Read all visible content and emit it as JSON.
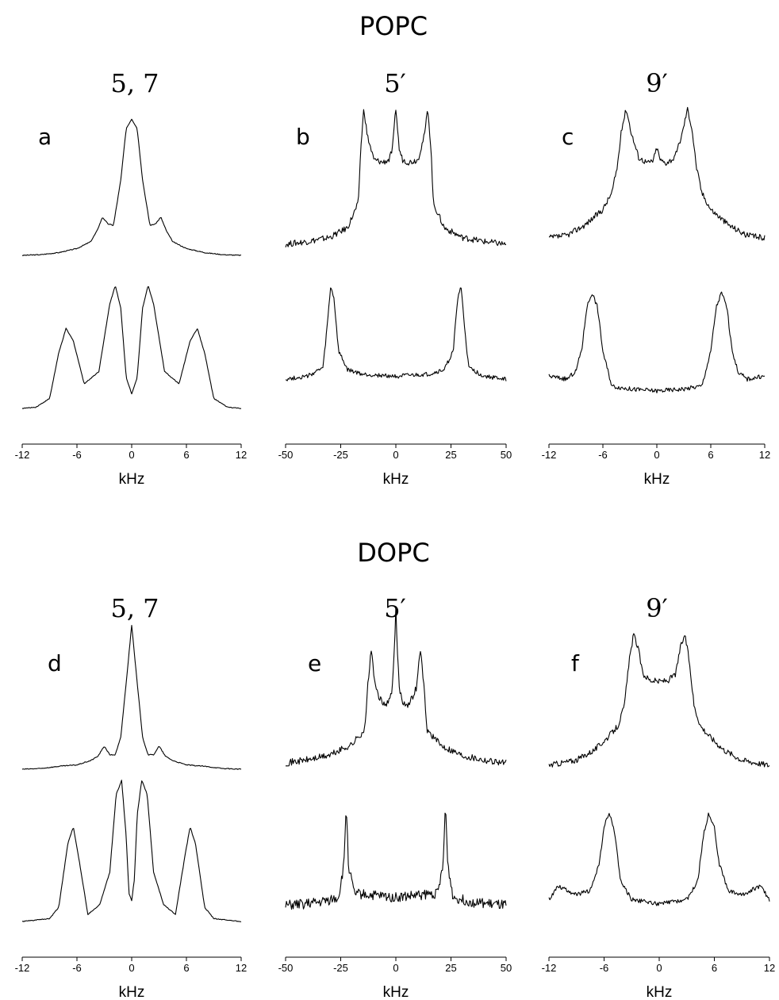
{
  "figure": {
    "groups": [
      {
        "title": "POPC",
        "columns": [
          "5, 7",
          "5′",
          "9′"
        ]
      },
      {
        "title": "DOPC",
        "columns": [
          "5, 7",
          "5′",
          "9′"
        ]
      }
    ]
  },
  "chart_data": [
    {
      "panel": "a",
      "type": "line",
      "group": "POPC",
      "column_label": "5, 7",
      "xlabel": "kHz",
      "xlim": [
        -12,
        12
      ],
      "xticks": [
        -12,
        -6,
        0,
        6,
        12
      ],
      "series": [
        {
          "role": "upper",
          "x": [
            -12,
            -10,
            -8,
            -6,
            -4.5,
            -3.8,
            -3.2,
            -2.6,
            -2,
            -1.2,
            -0.6,
            0,
            0.6,
            1.2,
            2,
            2.6,
            3.2,
            3.8,
            4.5,
            6,
            8,
            10,
            12
          ],
          "y": [
            0,
            0.005,
            0.02,
            0.05,
            0.1,
            0.18,
            0.28,
            0.23,
            0.22,
            0.55,
            0.93,
            1.0,
            0.93,
            0.55,
            0.22,
            0.23,
            0.28,
            0.18,
            0.1,
            0.05,
            0.02,
            0.005,
            0
          ]
        },
        {
          "role": "lower",
          "x": [
            -12,
            -10.5,
            -9,
            -8,
            -7.2,
            -6.4,
            -5.2,
            -3.6,
            -2.4,
            -1.8,
            -1.2,
            -0.6,
            0,
            0.6,
            1.2,
            1.8,
            2.4,
            3.6,
            5.2,
            6.4,
            7.2,
            8,
            9,
            10.5,
            12
          ],
          "y": [
            0,
            0.01,
            0.08,
            0.45,
            0.65,
            0.55,
            0.2,
            0.3,
            0.85,
            1.0,
            0.82,
            0.25,
            0.12,
            0.25,
            0.82,
            1.0,
            0.85,
            0.3,
            0.2,
            0.55,
            0.65,
            0.45,
            0.08,
            0.01,
            0
          ]
        }
      ]
    },
    {
      "panel": "b",
      "type": "line",
      "group": "POPC",
      "column_label": "5′",
      "xlabel": "kHz",
      "xlim": [
        -50,
        50
      ],
      "xticks": [
        -50,
        -25,
        0,
        25,
        50
      ],
      "series": [
        {
          "role": "upper",
          "x": [
            -50,
            -40,
            -30,
            -22,
            -17,
            -16,
            -14.5,
            -13,
            -10,
            -6,
            -3,
            -1.5,
            -0.5,
            0,
            0.5,
            1.5,
            3,
            6,
            10,
            13,
            14.5,
            16,
            17,
            22,
            30,
            40,
            50
          ],
          "y": [
            0,
            0.02,
            0.05,
            0.12,
            0.3,
            0.68,
            1.0,
            0.8,
            0.62,
            0.6,
            0.62,
            0.7,
            0.9,
            1.0,
            0.9,
            0.7,
            0.62,
            0.6,
            0.62,
            0.8,
            1.0,
            0.68,
            0.3,
            0.12,
            0.05,
            0.02,
            0
          ]
        },
        {
          "role": "lower",
          "x": [
            -50,
            -40,
            -33,
            -31,
            -29.5,
            -28,
            -26,
            -22,
            -15,
            0,
            15,
            22,
            26,
            28,
            29.5,
            31,
            33,
            40,
            50
          ],
          "y": [
            0,
            0.03,
            0.12,
            0.6,
            1.0,
            0.85,
            0.3,
            0.1,
            0.05,
            0.03,
            0.05,
            0.1,
            0.3,
            0.85,
            1.0,
            0.6,
            0.12,
            0.03,
            0
          ]
        }
      ]
    },
    {
      "panel": "c",
      "type": "line",
      "group": "POPC",
      "column_label": "9′",
      "xlabel": "kHz",
      "xlim": [
        -12,
        12
      ],
      "xticks": [
        -12,
        -6,
        0,
        6,
        12
      ],
      "series": [
        {
          "role": "upper",
          "x": [
            -12,
            -10,
            -8,
            -6,
            -5,
            -4.4,
            -3.9,
            -3.4,
            -2.8,
            -2,
            -1,
            -0.4,
            0,
            0.4,
            1,
            2,
            2.8,
            3.4,
            3.9,
            4.4,
            5,
            6,
            8,
            10,
            12
          ],
          "y": [
            0,
            0.02,
            0.1,
            0.22,
            0.35,
            0.55,
            0.85,
            1.0,
            0.8,
            0.62,
            0.58,
            0.6,
            0.7,
            0.6,
            0.58,
            0.62,
            0.8,
            1.0,
            0.85,
            0.55,
            0.35,
            0.22,
            0.1,
            0.02,
            0
          ]
        },
        {
          "role": "lower",
          "x": [
            -12,
            -10,
            -9,
            -8.3,
            -7.8,
            -7.2,
            -6.6,
            -6,
            -5,
            -3,
            0,
            3,
            5,
            6,
            6.6,
            7.2,
            7.8,
            8.3,
            9,
            10,
            12
          ],
          "y": [
            0.15,
            0.12,
            0.2,
            0.45,
            0.85,
            1.0,
            0.85,
            0.4,
            0.05,
            0.02,
            0,
            0.02,
            0.05,
            0.4,
            0.85,
            1.0,
            0.85,
            0.45,
            0.2,
            0.12,
            0.15
          ]
        }
      ]
    },
    {
      "panel": "d",
      "type": "line",
      "group": "DOPC",
      "column_label": "5, 7",
      "xlabel": "kHz",
      "xlim": [
        -12,
        12
      ],
      "xticks": [
        -12,
        -6,
        0,
        6,
        12
      ],
      "series": [
        {
          "role": "upper",
          "x": [
            -12,
            -10,
            -8,
            -6,
            -4.5,
            -3.7,
            -3,
            -2.4,
            -1.8,
            -1.2,
            -0.6,
            0,
            0.6,
            1.2,
            1.8,
            2.4,
            3,
            3.7,
            4.5,
            6,
            8,
            10,
            12
          ],
          "y": [
            0,
            0.005,
            0.02,
            0.03,
            0.06,
            0.09,
            0.16,
            0.1,
            0.1,
            0.22,
            0.6,
            1.0,
            0.6,
            0.22,
            0.1,
            0.1,
            0.16,
            0.09,
            0.06,
            0.03,
            0.02,
            0.005,
            0
          ]
        },
        {
          "role": "lower",
          "x": [
            -12,
            -9,
            -8,
            -7,
            -6.4,
            -5.8,
            -4.8,
            -3.5,
            -2.4,
            -1.7,
            -1.1,
            -0.6,
            -0.3,
            0,
            0.3,
            0.6,
            1.1,
            1.7,
            2.4,
            3.5,
            4.8,
            5.8,
            6.4,
            7,
            8,
            9,
            12
          ],
          "y": [
            0,
            0.02,
            0.1,
            0.55,
            0.67,
            0.45,
            0.05,
            0.12,
            0.35,
            0.9,
            1.0,
            0.6,
            0.2,
            0.15,
            0.3,
            0.75,
            1.0,
            0.9,
            0.35,
            0.12,
            0.05,
            0.45,
            0.67,
            0.55,
            0.1,
            0.02,
            0
          ]
        }
      ]
    },
    {
      "panel": "e",
      "type": "line",
      "group": "DOPC",
      "column_label": "5′",
      "xlabel": "kHz",
      "xlim": [
        -50,
        50
      ],
      "xticks": [
        -50,
        -25,
        0,
        25,
        50
      ],
      "series": [
        {
          "role": "upper",
          "x": [
            -50,
            -40,
            -30,
            -20,
            -14,
            -12.5,
            -11,
            -9.5,
            -6,
            -3,
            -1.5,
            -0.5,
            0,
            0.5,
            1.5,
            3,
            6,
            9.5,
            11,
            12.5,
            14,
            20,
            30,
            40,
            50
          ],
          "y": [
            0,
            0.02,
            0.05,
            0.12,
            0.22,
            0.55,
            0.75,
            0.5,
            0.38,
            0.4,
            0.5,
            0.8,
            1.0,
            0.8,
            0.5,
            0.4,
            0.38,
            0.5,
            0.75,
            0.55,
            0.22,
            0.12,
            0.05,
            0.02,
            0
          ]
        },
        {
          "role": "lower",
          "x": [
            -50,
            -35,
            -26,
            -23.5,
            -22.5,
            -21.5,
            -19,
            -10,
            0,
            10,
            19,
            21.5,
            22.5,
            23.5,
            26,
            35,
            50
          ],
          "y": [
            0,
            0.03,
            0.08,
            0.4,
            1.0,
            0.4,
            0.12,
            0.1,
            0.08,
            0.1,
            0.12,
            0.4,
            1.0,
            0.4,
            0.08,
            0.03,
            0
          ]
        }
      ]
    },
    {
      "panel": "f",
      "type": "line",
      "group": "DOPC",
      "column_label": "9′",
      "xlabel": "kHz",
      "xlim": [
        -12,
        12
      ],
      "xticks": [
        -12,
        -6,
        0,
        6,
        12
      ],
      "series": [
        {
          "role": "upper",
          "x": [
            -12,
            -9,
            -7,
            -5.5,
            -4.5,
            -3.8,
            -3.3,
            -2.8,
            -2.3,
            -1.8,
            -1,
            0,
            1,
            1.8,
            2.3,
            2.8,
            3.3,
            3.8,
            4.5,
            5.5,
            7,
            9,
            12
          ],
          "y": [
            0,
            0.04,
            0.12,
            0.22,
            0.3,
            0.45,
            0.78,
            1.0,
            0.9,
            0.7,
            0.65,
            0.64,
            0.65,
            0.7,
            0.9,
            1.0,
            0.78,
            0.45,
            0.3,
            0.22,
            0.12,
            0.04,
            0
          ]
        },
        {
          "role": "lower",
          "x": [
            -12,
            -11,
            -10,
            -9,
            -7.5,
            -6.5,
            -6,
            -5.4,
            -4.8,
            -4.2,
            -3,
            0,
            3,
            4.2,
            4.8,
            5.4,
            6,
            6.5,
            7.5,
            9,
            10,
            11,
            12
          ],
          "y": [
            0.05,
            0.2,
            0.15,
            0.1,
            0.15,
            0.45,
            0.85,
            1.0,
            0.75,
            0.25,
            0.05,
            0,
            0.05,
            0.25,
            0.75,
            1.0,
            0.85,
            0.45,
            0.15,
            0.1,
            0.15,
            0.2,
            0.05
          ]
        }
      ]
    }
  ]
}
